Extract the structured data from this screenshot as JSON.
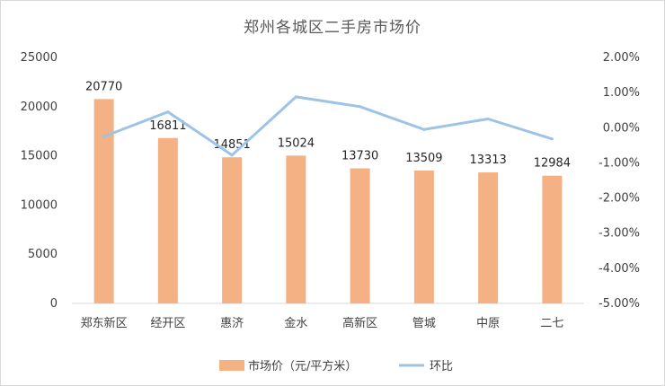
{
  "chart_data": {
    "type": "bar",
    "title": "郑州各城区二手房市场价",
    "categories": [
      "郑东新区",
      "经开区",
      "惠济",
      "金水",
      "高新区",
      "管城",
      "中原",
      "二七"
    ],
    "series": [
      {
        "name": "市场价（元/平方米）",
        "type": "bar",
        "axis": "left",
        "color": "#F4B183",
        "values": [
          20770,
          16811,
          14851,
          15024,
          13730,
          13509,
          13313,
          12984
        ],
        "labels": [
          "20770",
          "16811",
          "14851",
          "15024",
          "13730",
          "13509",
          "13313",
          "12984"
        ]
      },
      {
        "name": "环比",
        "type": "line",
        "axis": "right",
        "color": "#9DC3E6",
        "values": [
          -0.25,
          0.45,
          -0.78,
          0.88,
          0.6,
          -0.05,
          0.25,
          -0.32
        ]
      }
    ],
    "y_left": {
      "min": 0,
      "max": 25000,
      "step": 5000,
      "ticks": [
        "0",
        "5000",
        "10000",
        "15000",
        "20000",
        "25000"
      ]
    },
    "y_right": {
      "min": -5,
      "max": 2,
      "step": 1,
      "unit": "%",
      "ticks": [
        "-5.00%",
        "-4.00%",
        "-3.00%",
        "-2.00%",
        "-1.00%",
        "0.00%",
        "1.00%",
        "2.00%"
      ]
    },
    "grid": false,
    "legend": "bottom"
  }
}
